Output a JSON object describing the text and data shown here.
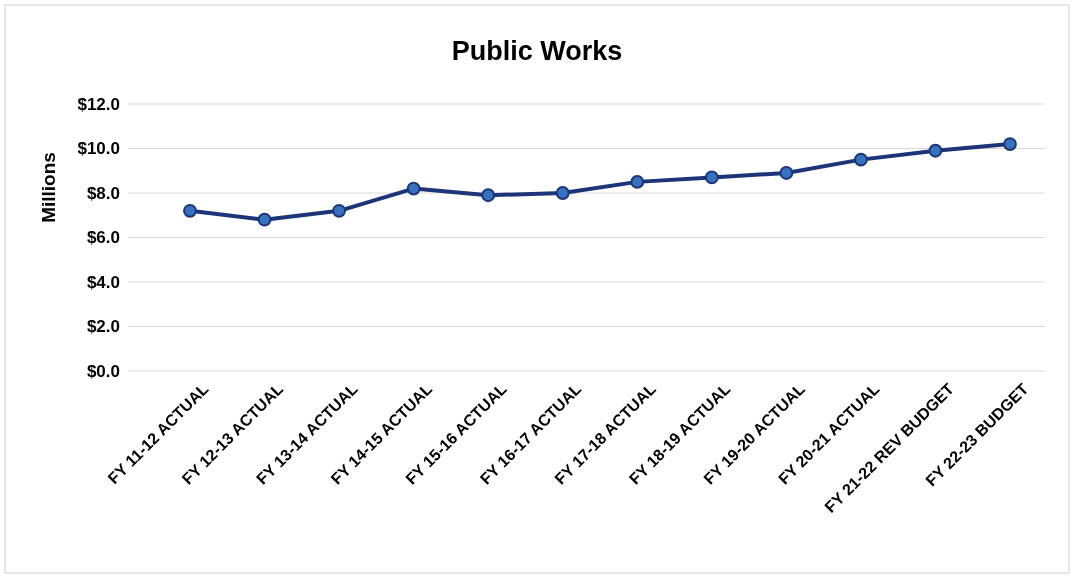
{
  "chart_data": {
    "type": "line",
    "title": "Public Works",
    "ylabel": "Millions",
    "categories": [
      "FY 11-12 ACTUAL",
      "FY 12-13 ACTUAL",
      "FY 13-14 ACTUAL",
      "FY 14-15 ACTUAL",
      "FY 15-16 ACTUAL",
      "FY 16-17 ACTUAL",
      "FY 17-18 ACTUAL",
      "FY 18-19 ACTUAL",
      "FY 19-20 ACTUAL",
      "FY 20-21 ACTUAL",
      "FY 21-22 REV BUDGET",
      "FY 22-23 BUDGET"
    ],
    "series": [
      {
        "color": "#1c3578",
        "values": [
          7.2,
          6.8,
          7.2,
          8.2,
          7.9,
          8.0,
          8.5,
          8.7,
          8.9,
          9.5,
          9.9,
          10.2
        ]
      }
    ],
    "ylim": [
      0,
      12
    ],
    "yticks": [
      {
        "value": 0,
        "label": "$0.0"
      },
      {
        "value": 2,
        "label": "$2.0"
      },
      {
        "value": 4,
        "label": "$4.0"
      },
      {
        "value": 6,
        "label": "$6.0"
      },
      {
        "value": 8,
        "label": "$8.0"
      },
      {
        "value": 10,
        "label": "$10.0"
      },
      {
        "value": 12,
        "label": "$12.0"
      }
    ],
    "grid": "y",
    "marker": "circle",
    "line_style": "solid"
  }
}
